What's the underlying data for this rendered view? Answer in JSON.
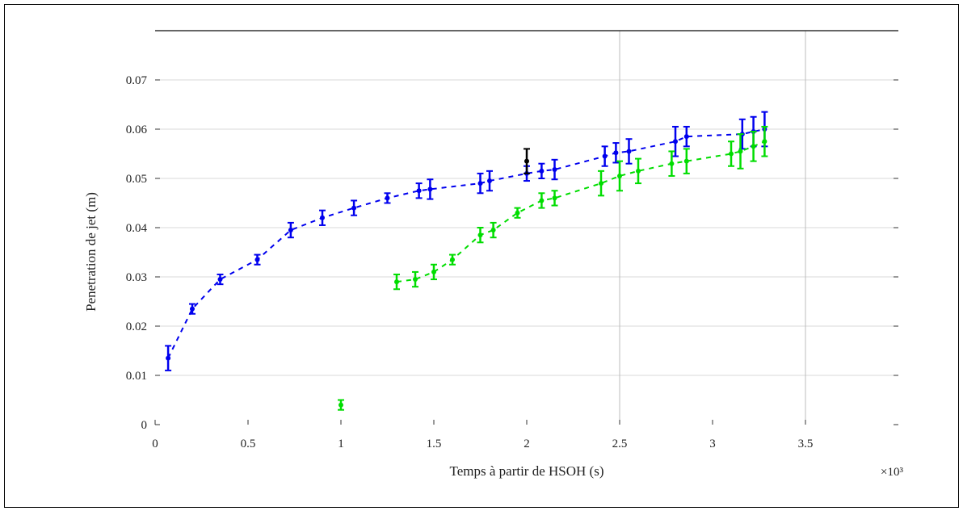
{
  "chart_data": {
    "type": "scatter",
    "title": "",
    "xlabel": "Temps à partir de HSOH (s)",
    "ylabel": "Penetration de jet (m)",
    "x_multiplier_label": "×10³",
    "xlim": [
      0,
      4
    ],
    "ylim": [
      0,
      0.08
    ],
    "x_ticks": [
      0,
      0.5,
      1,
      1.5,
      2,
      2.5,
      3,
      3.5
    ],
    "x_tick_labels": [
      "0",
      "0.5",
      "1",
      "1.5",
      "2",
      "2.5",
      "3",
      "3.5"
    ],
    "y_ticks": [
      0,
      0.01,
      0.02,
      0.03,
      0.04,
      0.05,
      0.06,
      0.07
    ],
    "y_tick_labels": [
      "0",
      "0.01",
      "0.02",
      "0.03",
      "0.04",
      "0.05",
      "0.06",
      "0.07"
    ],
    "grid": "partial",
    "vertical_gridlines_at": [
      2.5,
      3.5
    ],
    "horizontal_gridlines": true,
    "series": [
      {
        "color": "#0000ee",
        "points": [
          {
            "x": 0.07,
            "y": 0.0135,
            "err": 0.0025
          },
          {
            "x": 0.2,
            "y": 0.0235,
            "err": 0.001
          },
          {
            "x": 0.35,
            "y": 0.0295,
            "err": 0.001
          },
          {
            "x": 0.55,
            "y": 0.0335,
            "err": 0.001
          },
          {
            "x": 0.73,
            "y": 0.0395,
            "err": 0.0015
          },
          {
            "x": 0.9,
            "y": 0.042,
            "err": 0.0015
          },
          {
            "x": 1.07,
            "y": 0.044,
            "err": 0.0015
          },
          {
            "x": 1.25,
            "y": 0.046,
            "err": 0.001
          },
          {
            "x": 1.42,
            "y": 0.0475,
            "err": 0.0015
          },
          {
            "x": 1.48,
            "y": 0.0478,
            "err": 0.002
          },
          {
            "x": 1.75,
            "y": 0.049,
            "err": 0.002
          },
          {
            "x": 1.8,
            "y": 0.0495,
            "err": 0.002
          },
          {
            "x": 2.0,
            "y": 0.051,
            "err": 0.0015
          },
          {
            "x": 2.08,
            "y": 0.0515,
            "err": 0.0015
          },
          {
            "x": 2.15,
            "y": 0.0518,
            "err": 0.002
          },
          {
            "x": 2.42,
            "y": 0.0545,
            "err": 0.002
          },
          {
            "x": 2.48,
            "y": 0.0552,
            "err": 0.002
          },
          {
            "x": 2.55,
            "y": 0.0555,
            "err": 0.0025
          },
          {
            "x": 2.8,
            "y": 0.0575,
            "err": 0.003
          },
          {
            "x": 2.86,
            "y": 0.0585,
            "err": 0.002
          },
          {
            "x": 3.16,
            "y": 0.059,
            "err": 0.003
          },
          {
            "x": 3.22,
            "y": 0.0595,
            "err": 0.003
          },
          {
            "x": 3.28,
            "y": 0.06,
            "err": 0.0035
          }
        ]
      },
      {
        "color": "#00dd00",
        "points": [
          {
            "x": 1.0,
            "y": 0.004,
            "err": 0.001
          },
          {
            "x": 1.3,
            "y": 0.029,
            "err": 0.0015
          },
          {
            "x": 1.4,
            "y": 0.0295,
            "err": 0.0015
          },
          {
            "x": 1.5,
            "y": 0.031,
            "err": 0.0015
          },
          {
            "x": 1.6,
            "y": 0.0335,
            "err": 0.001
          },
          {
            "x": 1.75,
            "y": 0.0385,
            "err": 0.0015
          },
          {
            "x": 1.82,
            "y": 0.0395,
            "err": 0.0015
          },
          {
            "x": 1.95,
            "y": 0.043,
            "err": 0.001
          },
          {
            "x": 2.08,
            "y": 0.0455,
            "err": 0.0015
          },
          {
            "x": 2.15,
            "y": 0.046,
            "err": 0.0015
          },
          {
            "x": 2.4,
            "y": 0.049,
            "err": 0.0025
          },
          {
            "x": 2.5,
            "y": 0.0505,
            "err": 0.003
          },
          {
            "x": 2.6,
            "y": 0.0515,
            "err": 0.0025
          },
          {
            "x": 2.78,
            "y": 0.053,
            "err": 0.0025
          },
          {
            "x": 2.86,
            "y": 0.0535,
            "err": 0.0025
          },
          {
            "x": 3.1,
            "y": 0.055,
            "err": 0.0025
          },
          {
            "x": 3.15,
            "y": 0.0555,
            "err": 0.0035
          },
          {
            "x": 3.22,
            "y": 0.0565,
            "err": 0.003
          },
          {
            "x": 3.28,
            "y": 0.0575,
            "err": 0.003
          }
        ]
      },
      {
        "color": "#000000",
        "points": [
          {
            "x": 2.0,
            "y": 0.0535,
            "err": 0.0025
          }
        ]
      }
    ]
  }
}
